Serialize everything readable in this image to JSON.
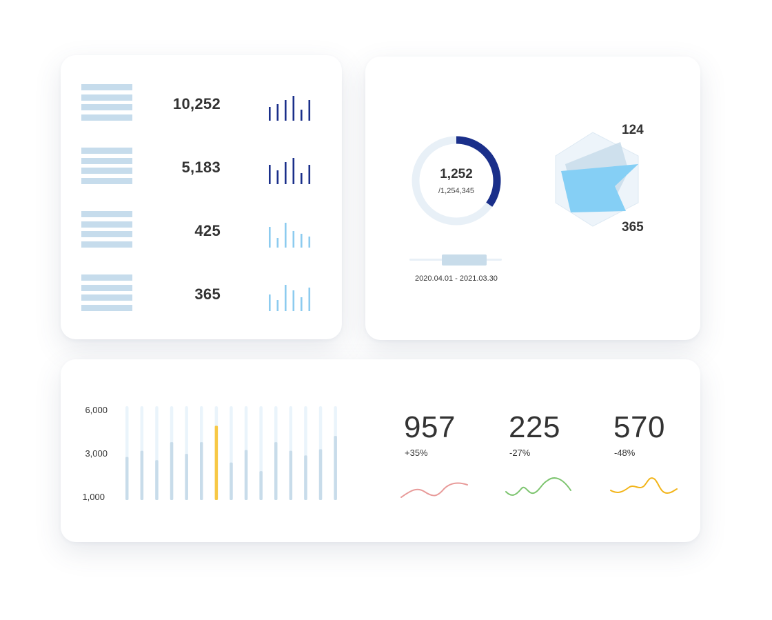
{
  "metrics_card": {
    "rows": [
      {
        "value": "10,252",
        "bars": [
          20,
          24,
          30,
          36,
          16,
          30
        ],
        "color": "#1a2f8a"
      },
      {
        "value": "5,183",
        "bars": [
          28,
          20,
          32,
          38,
          16,
          28
        ],
        "color": "#1a2f8a"
      },
      {
        "value": "425",
        "bars": [
          30,
          14,
          36,
          24,
          20,
          16
        ],
        "color": "#8ccbef"
      },
      {
        "value": "365",
        "bars": [
          24,
          16,
          38,
          30,
          20,
          34
        ],
        "color": "#8ccbef"
      }
    ]
  },
  "progress_card": {
    "donut": {
      "value": "1,252",
      "total": "/1,254,345",
      "fraction": 0.35,
      "color": "#1a2f8a",
      "track_color": "#e8f0f7"
    },
    "date_range": "2020.04.01 - 2021.03.30",
    "radar": {
      "label_top": "124",
      "label_bottom": "365"
    }
  },
  "chart_data": [
    {
      "type": "bar",
      "title": "",
      "y_tick_labels": [
        "6,000",
        "3,000",
        "1,000"
      ],
      "ylim": [
        0,
        6000
      ],
      "values": [
        2750,
        3150,
        2550,
        3700,
        2950,
        3700,
        4750,
        2400,
        3200,
        1850,
        3700,
        3150,
        2850,
        3250,
        4100
      ],
      "max_values": [
        6000,
        6000,
        6000,
        6000,
        6000,
        6000,
        6000,
        6000,
        6000,
        6000,
        6000,
        6000,
        6000,
        6000,
        6000
      ],
      "highlight_index": 6,
      "colors": {
        "bar": "#c8dcea",
        "track": "#eaf4fb",
        "highlight": "#f7c845"
      }
    }
  ],
  "stats": [
    {
      "value": "957",
      "change": "+35%",
      "color": "#e89a99"
    },
    {
      "value": "225",
      "change": "-27%",
      "color": "#7cc46e"
    },
    {
      "value": "570",
      "change": "-48%",
      "color": "#f2b418"
    }
  ]
}
